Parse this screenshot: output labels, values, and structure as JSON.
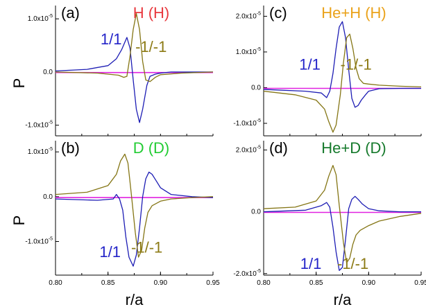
{
  "chart_data": [
    {
      "id": "a",
      "type": "line",
      "label": "(a)",
      "title": "H (H)",
      "title_color": "#e8393f",
      "ylabel": "P",
      "xlabel": "",
      "xlim": [
        0.8,
        0.95
      ],
      "ylim": [
        -1.2e-05,
        1.25e-05
      ],
      "yticks": [
        1e-05,
        0.0,
        -1e-05
      ],
      "ytick_labels": [
        {
          "base": "1.0x10",
          "exp": "-5"
        },
        {
          "base": "0.0",
          "exp": ""
        },
        {
          "base": "-1.0x10",
          "exp": "-5"
        }
      ],
      "annotations": [
        {
          "text": "1/1",
          "color": "#2323c8",
          "at": [
            0.853,
            5.2e-06
          ]
        },
        {
          "text": "-1/-1",
          "color": "#8c7a14",
          "at": [
            0.891,
            3.8e-06
          ]
        }
      ],
      "series": [
        {
          "name": "1/1",
          "color": "#1c1cb4",
          "x": [
            0.8,
            0.83,
            0.85,
            0.858,
            0.863,
            0.868,
            0.871,
            0.874,
            0.877,
            0.88,
            0.883,
            0.887,
            0.89,
            0.895,
            0.9,
            0.91,
            0.92,
            0.95
          ],
          "values": [
            2e-07,
            5e-07,
            1.2e-06,
            2.5e-06,
            4.2e-06,
            6.5e-06,
            4.5e-06,
            -1.5e-06,
            -7e-06,
            -9.5e-06,
            -7e-06,
            -2.5e-06,
            -8e-07,
            -4e-07,
            -2e-07,
            0.0,
            0.0,
            0.0
          ]
        },
        {
          "name": "-1/-1",
          "color": "#847514",
          "x": [
            0.8,
            0.84,
            0.86,
            0.865,
            0.868,
            0.871,
            0.874,
            0.877,
            0.88,
            0.883,
            0.886,
            0.89,
            0.895,
            0.9,
            0.92,
            0.95
          ],
          "values": [
            0.0,
            -2e-07,
            -6e-07,
            -1e-06,
            -8e-07,
            3e-06,
            8e-06,
            1.1e-05,
            8e-06,
            2e-06,
            -1.5e-06,
            -1.8e-06,
            -1e-06,
            -5e-07,
            -2e-07,
            0.0
          ]
        },
        {
          "name": "baseline",
          "color": "#e020e0",
          "x": [
            0.8,
            0.95
          ],
          "values": [
            -1e-07,
            -1e-07
          ]
        }
      ]
    },
    {
      "id": "b",
      "type": "line",
      "label": "(b)",
      "title": "D (D)",
      "title_color": "#22cc33",
      "ylabel": "P",
      "xlabel": "r/a",
      "xlim": [
        0.8,
        0.95
      ],
      "ylim": [
        -1.75e-05,
        1.25e-05
      ],
      "yticks": [
        1e-05,
        0.0,
        -1e-05
      ],
      "ytick_labels": [
        {
          "base": "1.0x10",
          "exp": "-5"
        },
        {
          "base": "0.0",
          "exp": ""
        },
        {
          "base": "-1.0x10",
          "exp": "-5"
        }
      ],
      "xticks": [
        0.8,
        0.85,
        0.9,
        0.95
      ],
      "xtick_labels": [
        "0.80",
        "0.85",
        "0.90",
        "0.95"
      ],
      "annotations": [
        {
          "text": "1/1",
          "color": "#2323c8",
          "at": [
            0.852,
            -1.35e-05
          ]
        },
        {
          "text": "-1/-1",
          "color": "#8c7a14",
          "at": [
            0.887,
            -1.25e-05
          ]
        }
      ],
      "series": [
        {
          "name": "1/1",
          "color": "#1c1cb4",
          "x": [
            0.8,
            0.84,
            0.855,
            0.858,
            0.861,
            0.864,
            0.867,
            0.87,
            0.874,
            0.877,
            0.88,
            0.883,
            0.886,
            0.889,
            0.892,
            0.896,
            0.9,
            0.91,
            0.93,
            0.95
          ],
          "values": [
            -5e-07,
            -8e-07,
            -5e-07,
            5e-07,
            -5e-07,
            -3e-06,
            -9e-06,
            -1.35e-05,
            -1.55e-05,
            -1.3e-05,
            -7e-06,
            0.0,
            4e-06,
            5.5e-06,
            5e-06,
            3.5e-06,
            2e-06,
            5e-07,
            0.0,
            -2e-07
          ]
        },
        {
          "name": "-1/-1",
          "color": "#847514",
          "x": [
            0.8,
            0.83,
            0.85,
            0.858,
            0.862,
            0.866,
            0.869,
            0.872,
            0.876,
            0.879,
            0.882,
            0.885,
            0.888,
            0.892,
            0.9,
            0.91,
            0.93,
            0.95
          ],
          "values": [
            5e-07,
            1e-06,
            2.5e-06,
            5e-06,
            8e-06,
            9.5e-06,
            7.5e-06,
            1e-06,
            -8e-06,
            -1.35e-05,
            -1.2e-05,
            -7e-06,
            -3.5e-06,
            -2e-06,
            -1e-06,
            -5e-07,
            -2e-07,
            0.0
          ]
        },
        {
          "name": "baseline",
          "color": "#e020e0",
          "x": [
            0.8,
            0.95
          ],
          "values": [
            -2e-07,
            -2e-07
          ]
        }
      ]
    },
    {
      "id": "c",
      "type": "line",
      "label": "(c)",
      "title": "He+H (H)",
      "title_color": "#eaa21a",
      "ylabel": "",
      "xlabel": "",
      "xlim": [
        0.8,
        0.95
      ],
      "ylim": [
        -1.35e-05,
        2.3e-05
      ],
      "yticks": [
        2e-05,
        1e-05,
        0.0,
        -1e-05
      ],
      "ytick_labels": [
        {
          "base": "2.0x10",
          "exp": "-5"
        },
        {
          "base": "1.0x10",
          "exp": "-5"
        },
        {
          "base": "0.0",
          "exp": ""
        },
        {
          "base": "-1.0x10",
          "exp": "-5"
        }
      ],
      "annotations": [
        {
          "text": "1/1",
          "color": "#2323c8",
          "at": [
            0.844,
            5e-06
          ]
        },
        {
          "text": "-1/-1",
          "color": "#8c7a14",
          "at": [
            0.888,
            5e-06
          ]
        }
      ],
      "series": [
        {
          "name": "1/1",
          "color": "#1c1cb4",
          "x": [
            0.8,
            0.84,
            0.855,
            0.86,
            0.863,
            0.866,
            0.869,
            0.872,
            0.875,
            0.878,
            0.881,
            0.884,
            0.887,
            0.89,
            0.893,
            0.897,
            0.9,
            0.91,
            0.93,
            0.95
          ],
          "values": [
            -5e-07,
            -1e-06,
            -1.5e-06,
            -2.8e-06,
            -1e-06,
            4e-06,
            1.1e-05,
            1.7e-05,
            1.85e-05,
            1.4e-05,
            5e-06,
            -3e-06,
            -5.5e-06,
            -5e-06,
            -3.5e-06,
            -2e-06,
            -1e-06,
            -3e-07,
            -2e-07,
            -2e-07
          ]
        },
        {
          "name": "-1/-1",
          "color": "#847514",
          "x": [
            0.8,
            0.83,
            0.85,
            0.858,
            0.862,
            0.866,
            0.869,
            0.873,
            0.876,
            0.879,
            0.882,
            0.885,
            0.888,
            0.891,
            0.895,
            0.9,
            0.91,
            0.93,
            0.95
          ],
          "values": [
            -1e-06,
            -2e-06,
            -3.5e-06,
            -6e-06,
            -9.5e-06,
            -1.25e-05,
            -1.05e-05,
            -2e-06,
            7e-06,
            1.4e-05,
            1.5e-05,
            1.1e-05,
            5.5e-06,
            2.5e-06,
            1.2e-06,
            1e-06,
            7e-07,
            4e-07,
            2e-07
          ]
        },
        {
          "name": "baseline",
          "color": "#e020e0",
          "x": [
            0.8,
            0.95
          ],
          "values": [
            -2e-07,
            -2e-07
          ]
        }
      ]
    },
    {
      "id": "d",
      "type": "line",
      "label": "(d)",
      "title": "He+D (D)",
      "title_color": "#167a2c",
      "ylabel": "",
      "xlabel": "r/a",
      "xlim": [
        0.8,
        0.95
      ],
      "ylim": [
        -2.05e-05,
        2.3e-05
      ],
      "yticks": [
        2e-05,
        0.0,
        -2e-05
      ],
      "ytick_labels": [
        {
          "base": "2.0x10",
          "exp": "-5"
        },
        {
          "base": "0.0",
          "exp": ""
        },
        {
          "base": "-2.0x10",
          "exp": "-5"
        }
      ],
      "xticks": [
        0.8,
        0.85,
        0.9,
        0.95
      ],
      "xtick_labels": [
        "0.80",
        "0.85",
        "0.90",
        "0.95"
      ],
      "annotations": [
        {
          "text": "1/1",
          "color": "#2323c8",
          "at": [
            0.845,
            -1.85e-05
          ]
        },
        {
          "text": "-1/-1",
          "color": "#8c7a14",
          "at": [
            0.885,
            -1.85e-05
          ]
        }
      ],
      "series": [
        {
          "name": "1/1",
          "color": "#1c1cb4",
          "x": [
            0.8,
            0.84,
            0.855,
            0.86,
            0.863,
            0.866,
            0.869,
            0.872,
            0.875,
            0.878,
            0.881,
            0.884,
            0.887,
            0.89,
            0.894,
            0.9,
            0.91,
            0.93,
            0.95
          ],
          "values": [
            0.0,
            5e-07,
            2e-06,
            3e-06,
            1.5e-06,
            -5e-06,
            -1.3e-05,
            -1.9e-05,
            -1.8e-05,
            -9e-06,
            1e-06,
            4e-06,
            5e-06,
            4e-06,
            2.5e-06,
            1e-06,
            3e-07,
            0.0,
            0.0
          ]
        },
        {
          "name": "-1/-1",
          "color": "#847514",
          "x": [
            0.8,
            0.83,
            0.85,
            0.858,
            0.862,
            0.866,
            0.869,
            0.872,
            0.876,
            0.879,
            0.882,
            0.885,
            0.888,
            0.892,
            0.9,
            0.91,
            0.93,
            0.95
          ],
          "values": [
            1e-06,
            1.5e-06,
            3.5e-06,
            7e-06,
            1.15e-05,
            1.5e-05,
            1.2e-05,
            2e-06,
            -1e-05,
            -1.65e-05,
            -1.5e-05,
            -1.05e-05,
            -7.5e-06,
            -6e-06,
            -4.5e-06,
            -3e-06,
            -1.5e-06,
            -5e-07
          ]
        },
        {
          "name": "baseline",
          "color": "#e020e0",
          "x": [
            0.8,
            0.95
          ],
          "values": [
            -2e-07,
            -2e-07
          ]
        }
      ]
    }
  ]
}
